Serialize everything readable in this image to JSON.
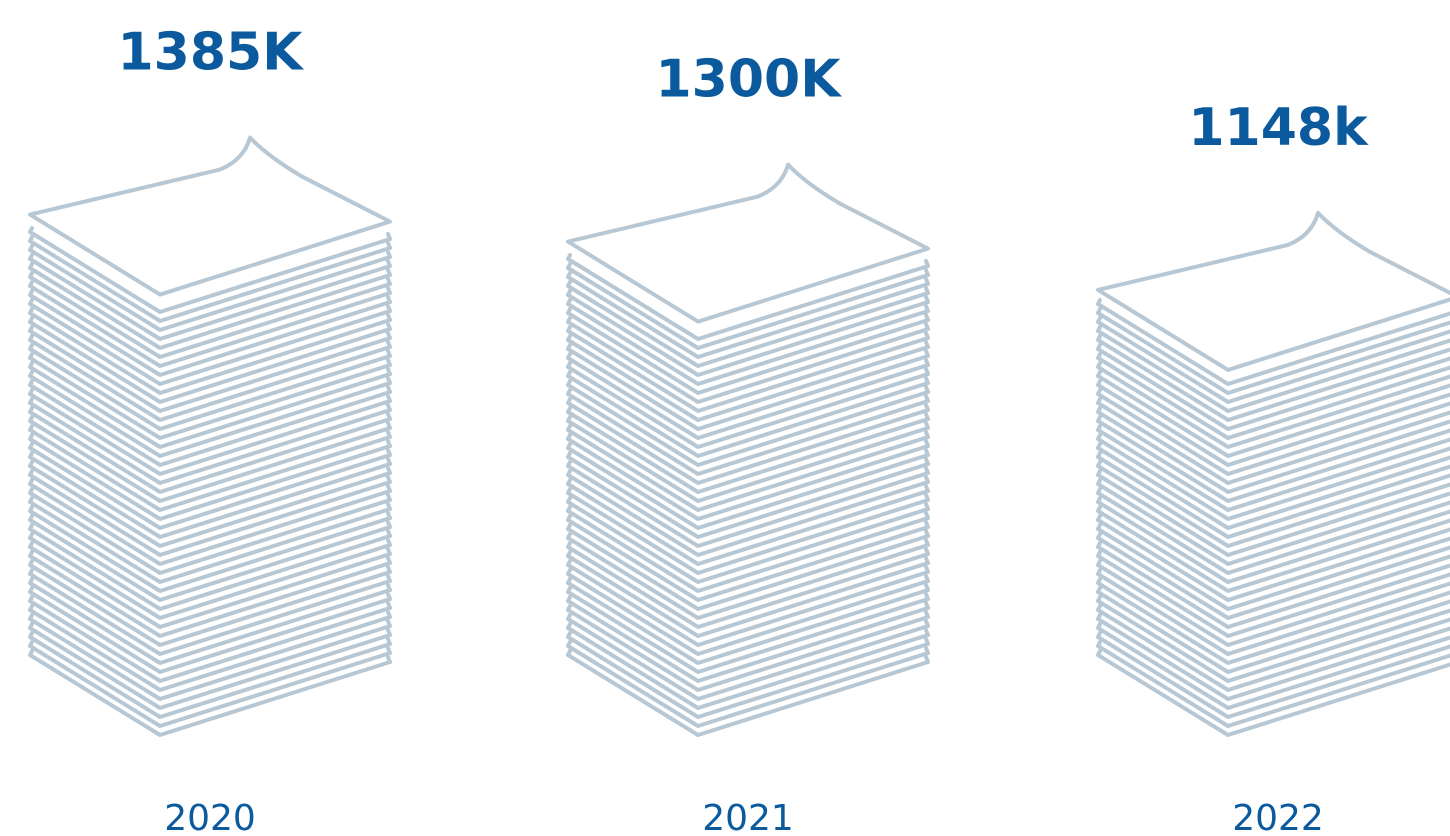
{
  "chart_data": {
    "type": "pictorial-stack",
    "categories": [
      "2020",
      "2021",
      "2022"
    ],
    "values": [
      1385,
      1300,
      1148
    ],
    "value_labels": [
      "1385K",
      "1300K",
      "1148k"
    ],
    "color": "#b7c8d4"
  }
}
